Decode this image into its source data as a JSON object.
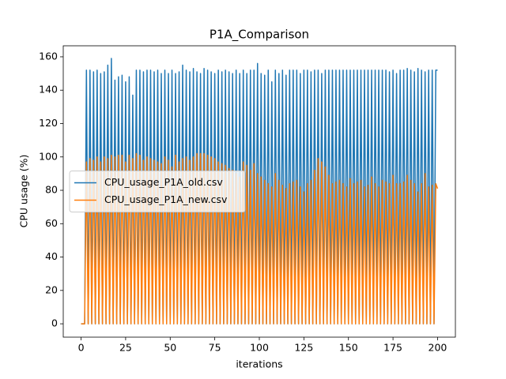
{
  "chart_data": {
    "type": "line",
    "title": "P1A_Comparison",
    "x_label": "iterations",
    "y_label": "CPU usage (%)",
    "x": [
      0,
      1,
      2,
      3,
      4,
      5,
      6,
      7,
      8,
      9,
      10,
      11,
      12,
      13,
      14,
      15,
      16,
      17,
      18,
      19,
      20,
      21,
      22,
      23,
      24,
      25,
      26,
      27,
      28,
      29,
      30,
      31,
      32,
      33,
      34,
      35,
      36,
      37,
      38,
      39,
      40,
      41,
      42,
      43,
      44,
      45,
      46,
      47,
      48,
      49,
      50,
      51,
      52,
      53,
      54,
      55,
      56,
      57,
      58,
      59,
      60,
      61,
      62,
      63,
      64,
      65,
      66,
      67,
      68,
      69,
      70,
      71,
      72,
      73,
      74,
      75,
      76,
      77,
      78,
      79,
      80,
      81,
      82,
      83,
      84,
      85,
      86,
      87,
      88,
      89,
      90,
      91,
      92,
      93,
      94,
      95,
      96,
      97,
      98,
      99,
      100,
      101,
      102,
      103,
      104,
      105,
      106,
      107,
      108,
      109,
      110,
      111,
      112,
      113,
      114,
      115,
      116,
      117,
      118,
      119,
      120,
      121,
      122,
      123,
      124,
      125,
      126,
      127,
      128,
      129,
      130,
      131,
      132,
      133,
      134,
      135,
      136,
      137,
      138,
      139,
      140,
      141,
      142,
      143,
      144,
      145,
      146,
      147,
      148,
      149,
      150,
      151,
      152,
      153,
      154,
      155,
      156,
      157,
      158,
      159,
      160,
      161,
      162,
      163,
      164,
      165,
      166,
      167,
      168,
      169,
      170,
      171,
      172,
      173,
      174,
      175,
      176,
      177,
      178,
      179,
      180,
      181,
      182,
      183,
      184,
      185,
      186,
      187,
      188,
      189,
      190,
      191,
      192,
      193,
      194,
      195,
      196,
      197,
      198,
      199,
      200
    ],
    "series": [
      {
        "name": "CPU_usage_P1A_old.csv",
        "color": "#1f77b4",
        "values": [
          0,
          0,
          0,
          152,
          0,
          152,
          0,
          151,
          0,
          152,
          0,
          150,
          0,
          151,
          0,
          155,
          0,
          159,
          0,
          146,
          0,
          148,
          0,
          149,
          0,
          145,
          0,
          148,
          0,
          137,
          0,
          152,
          0,
          152,
          0,
          151,
          0,
          152,
          0,
          152,
          0,
          151,
          0,
          152,
          0,
          150,
          0,
          152,
          0,
          150,
          0,
          152,
          0,
          150,
          0,
          151,
          0,
          155,
          0,
          152,
          0,
          151,
          0,
          153,
          0,
          151,
          0,
          150,
          0,
          153,
          0,
          152,
          0,
          151,
          0,
          150,
          0,
          152,
          0,
          151,
          0,
          152,
          0,
          151,
          0,
          150,
          0,
          152,
          0,
          150,
          0,
          152,
          0,
          150,
          0,
          152,
          0,
          152,
          0,
          156,
          0,
          150,
          0,
          149,
          0,
          152,
          0,
          145,
          0,
          152,
          0,
          150,
          0,
          152,
          0,
          149,
          0,
          152,
          0,
          152,
          0,
          152,
          0,
          150,
          0,
          152,
          0,
          152,
          0,
          151,
          0,
          152,
          0,
          152,
          0,
          150,
          0,
          152,
          0,
          152,
          0,
          152,
          0,
          152,
          0,
          152,
          0,
          152,
          0,
          152,
          0,
          152,
          0,
          152,
          0,
          152,
          0,
          152,
          0,
          152,
          0,
          152,
          0,
          152,
          0,
          152,
          0,
          152,
          0,
          152,
          0,
          152,
          0,
          151,
          0,
          152,
          0,
          150,
          0,
          152,
          0,
          152,
          0,
          153,
          0,
          152,
          0,
          151,
          0,
          153,
          0,
          152,
          0,
          151,
          0,
          152,
          0,
          152,
          0,
          152,
          152
        ]
      },
      {
        "name": "CPU_usage_P1A_new.csv",
        "color": "#ff7f0e",
        "values": [
          0,
          0,
          0,
          97,
          0,
          99,
          0,
          98,
          0,
          100,
          0,
          97,
          0,
          100,
          0,
          99,
          0,
          101,
          0,
          100,
          0,
          101,
          0,
          101,
          0,
          97,
          0,
          101,
          0,
          99,
          0,
          102,
          0,
          101,
          0,
          98,
          0,
          100,
          0,
          99,
          0,
          98,
          0,
          97,
          0,
          96,
          0,
          100,
          0,
          98,
          0,
          94,
          0,
          101,
          0,
          97,
          0,
          99,
          0,
          100,
          0,
          98,
          0,
          100,
          0,
          102,
          0,
          102,
          0,
          102,
          0,
          101,
          0,
          100,
          0,
          99,
          0,
          97,
          0,
          96,
          0,
          95,
          0,
          93,
          0,
          92,
          0,
          90,
          0,
          88,
          0,
          97,
          0,
          95,
          0,
          92,
          0,
          96,
          0,
          90,
          0,
          88,
          0,
          86,
          0,
          84,
          0,
          82,
          0,
          90,
          0,
          86,
          0,
          83,
          0,
          81,
          0,
          84,
          0,
          85,
          0,
          86,
          0,
          82,
          0,
          79,
          0,
          84,
          0,
          86,
          0,
          92,
          0,
          99,
          0,
          97,
          0,
          94,
          0,
          89,
          0,
          84,
          0,
          85,
          0,
          86,
          0,
          84,
          0,
          82,
          0,
          87,
          0,
          84,
          0,
          85,
          0,
          86,
          0,
          82,
          0,
          83,
          0,
          88,
          0,
          84,
          0,
          82,
          0,
          86,
          0,
          85,
          0,
          84,
          0,
          89,
          0,
          84,
          0,
          84,
          0,
          85,
          0,
          89,
          0,
          86,
          0,
          84,
          0,
          79,
          0,
          84,
          0,
          90,
          0,
          82,
          0,
          83,
          0,
          84,
          81
        ]
      }
    ],
    "xlim": [
      -10,
      210
    ],
    "xticks": [
      0,
      25,
      50,
      75,
      100,
      125,
      150,
      175,
      200
    ],
    "ylim": [
      -8,
      166.6
    ],
    "yticks": [
      0,
      20,
      40,
      60,
      80,
      100,
      120,
      140,
      160
    ],
    "legend": "center left"
  }
}
